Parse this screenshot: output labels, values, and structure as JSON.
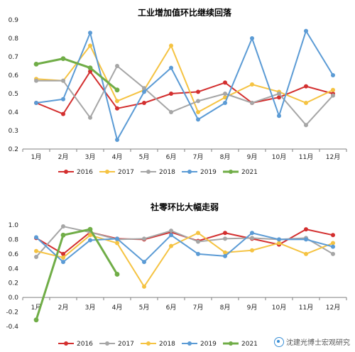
{
  "chart_data": [
    {
      "type": "line",
      "title": "工业增加值环比继续回落",
      "categories": [
        "1月",
        "2月",
        "3月",
        "4月",
        "5月",
        "6月",
        "7月",
        "8月",
        "9月",
        "10月",
        "11月",
        "12月"
      ],
      "ylim": [
        0.2,
        0.9
      ],
      "yticks": [
        "0.2",
        "0.3",
        "0.4",
        "0.5",
        "0.6",
        "0.7",
        "0.8",
        "0.9"
      ],
      "ytick_values": [
        0.2,
        0.3,
        0.4,
        0.5,
        0.6,
        0.7,
        0.8,
        0.9
      ],
      "legend_position": "bottom",
      "series": [
        {
          "name": "2016",
          "color": "#d32f2f",
          "values": [
            0.45,
            0.39,
            0.62,
            0.42,
            0.45,
            0.5,
            0.51,
            0.56,
            0.45,
            0.48,
            0.54,
            0.5
          ]
        },
        {
          "name": "2017",
          "color": "#f5c342",
          "values": [
            0.58,
            0.57,
            0.76,
            0.46,
            0.52,
            0.76,
            0.4,
            0.48,
            0.55,
            0.51,
            0.45,
            0.52
          ]
        },
        {
          "name": "2018",
          "color": "#a6a6a6",
          "values": [
            0.57,
            0.57,
            0.37,
            0.65,
            0.53,
            0.4,
            0.46,
            0.5,
            0.45,
            0.5,
            0.33,
            0.49
          ]
        },
        {
          "name": "2019",
          "color": "#5b9bd5",
          "values": [
            0.45,
            0.47,
            0.83,
            0.25,
            0.51,
            0.64,
            0.36,
            0.45,
            0.8,
            0.38,
            0.84,
            0.6
          ]
        },
        {
          "name": "2021",
          "color": "#70ad47",
          "values": [
            0.66,
            0.69,
            0.64,
            0.52,
            null,
            null,
            null,
            null,
            null,
            null,
            null,
            null
          ]
        }
      ]
    },
    {
      "type": "line",
      "title": "社零环比大幅走弱",
      "categories": [
        "1月",
        "2月",
        "3月",
        "4月",
        "5月",
        "6月",
        "7月",
        "8月",
        "9月",
        "10月",
        "11月",
        "12月"
      ],
      "ylim": [
        -0.4,
        1.0
      ],
      "yticks": [
        "-0.4",
        "-0.2",
        "0.0",
        "0.2",
        "0.4",
        "0.6",
        "0.8",
        "1.0"
      ],
      "ytick_values": [
        -0.4,
        -0.2,
        0.0,
        0.2,
        0.4,
        0.6,
        0.8,
        1.0
      ],
      "legend_position": "bottom",
      "series": [
        {
          "name": "2016",
          "color": "#d32f2f",
          "values": [
            0.82,
            0.6,
            0.9,
            0.81,
            0.8,
            0.9,
            0.78,
            0.89,
            0.81,
            0.73,
            0.94,
            0.86
          ]
        },
        {
          "name": "2017",
          "color": "#a6a6a6",
          "values": [
            0.56,
            0.98,
            0.9,
            0.8,
            0.81,
            0.92,
            0.77,
            0.81,
            0.82,
            0.8,
            0.82,
            0.6
          ]
        },
        {
          "name": "2018",
          "color": "#f5c342",
          "values": [
            0.64,
            0.55,
            0.86,
            0.75,
            0.15,
            0.71,
            0.89,
            0.62,
            0.65,
            0.75,
            0.6,
            0.75
          ]
        },
        {
          "name": "2019",
          "color": "#5b9bd5",
          "values": [
            0.83,
            0.49,
            0.79,
            0.81,
            0.49,
            0.86,
            0.6,
            0.57,
            0.89,
            0.8,
            0.8,
            0.7
          ]
        },
        {
          "name": "2021",
          "color": "#70ad47",
          "values": [
            -0.31,
            0.86,
            0.94,
            0.32,
            null,
            null,
            null,
            null,
            null,
            null,
            null,
            null
          ]
        }
      ]
    }
  ],
  "watermark": "沈建光博士宏观研究"
}
